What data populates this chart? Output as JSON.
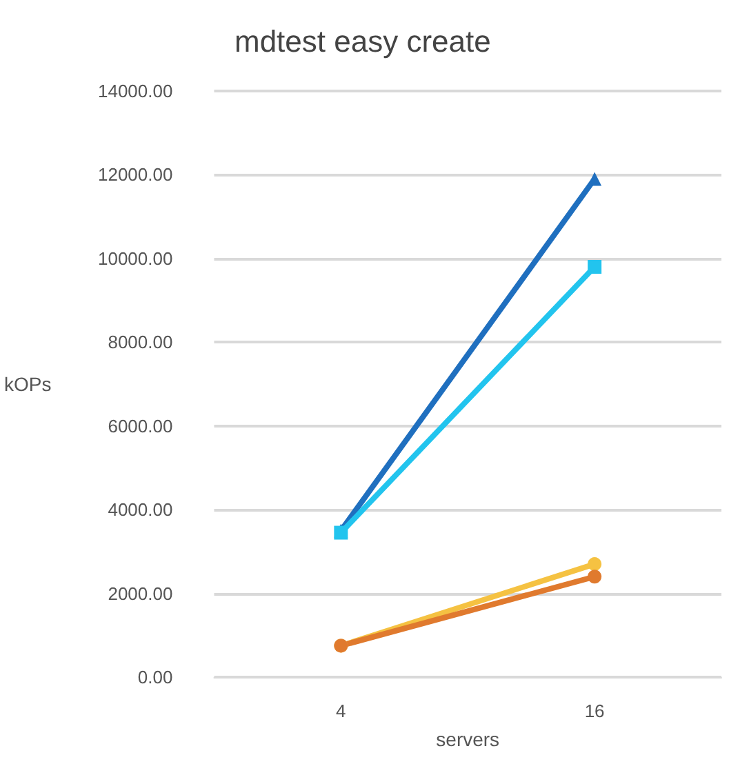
{
  "chart_data": {
    "type": "line",
    "title": "mdtest easy create",
    "xlabel": "servers",
    "ylabel": "kOPs",
    "categories": [
      "4",
      "16"
    ],
    "series": [
      {
        "color": "#1f6fbf",
        "marker": "triangle",
        "values": [
          3500,
          11900
        ]
      },
      {
        "color": "#22c4ee",
        "marker": "square",
        "values": [
          3450,
          9800
        ]
      },
      {
        "color": "#f5c242",
        "marker": "circle",
        "values": [
          750,
          2700
        ]
      },
      {
        "color": "#e07a2e",
        "marker": "circle",
        "values": [
          750,
          2400
        ]
      }
    ],
    "ylim": [
      0,
      14000
    ],
    "yticks": [
      {
        "value": 0,
        "label": "0.00"
      },
      {
        "value": 2000,
        "label": "2000.00"
      },
      {
        "value": 4000,
        "label": "4000.00"
      },
      {
        "value": 6000,
        "label": "6000.00"
      },
      {
        "value": 8000,
        "label": "8000.00"
      },
      {
        "value": 10000,
        "label": "10000.00"
      },
      {
        "value": 12000,
        "label": "12000.00"
      },
      {
        "value": 14000,
        "label": "14000.00"
      }
    ],
    "grid": "y"
  }
}
